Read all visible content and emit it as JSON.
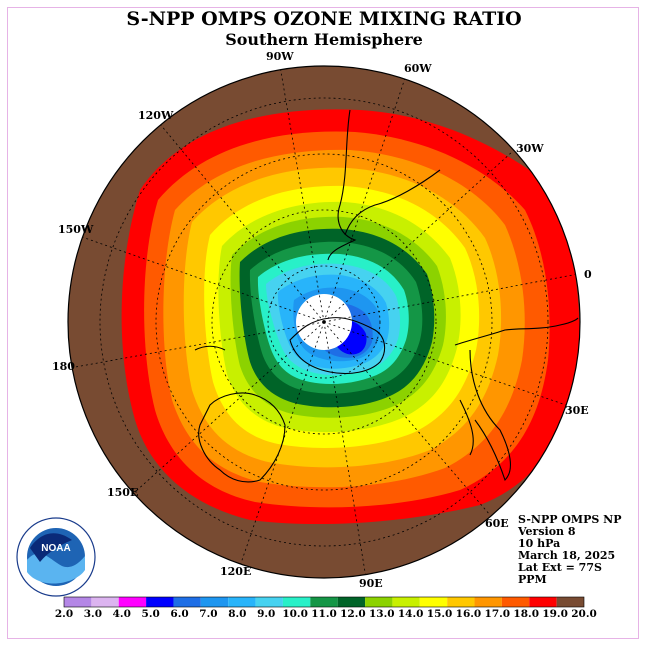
{
  "title": "S-NPP OMPS OZONE MIXING RATIO",
  "subtitle": "Southern Hemisphere",
  "longitude_labels": [
    "90W",
    "60W",
    "30W",
    "0",
    "30E",
    "60E",
    "90E",
    "120E",
    "150E",
    "180",
    "150W",
    "120W"
  ],
  "info": {
    "instrument": "S-NPP OMPS NP",
    "version": "Version 8",
    "level": "10 hPa",
    "date": "March 18, 2025",
    "lat_ext": "Lat Ext = 77S",
    "units": "PPM"
  },
  "logo": {
    "text": "NOAA",
    "ring_text": "NATIONAL OCEANIC AND ATMOSPHERIC ADMINISTRATION U.S. DEPARTMENT OF COMMERCE"
  },
  "colorbar": {
    "labels": [
      "2.0",
      "3.0",
      "4.0",
      "5.0",
      "6.0",
      "7.0",
      "8.0",
      "9.0",
      "10.0",
      "11.0",
      "12.0",
      "13.0",
      "14.0",
      "15.0",
      "16.0",
      "17.0",
      "18.0",
      "19.0",
      "20.0"
    ],
    "colors": [
      "#b487e6",
      "#dcb4f0",
      "#ff00ff",
      "#0000ff",
      "#1e6ee6",
      "#1e96f0",
      "#28b4fa",
      "#46d2f0",
      "#28f0c8",
      "#149646",
      "#006428",
      "#8cd200",
      "#c8f000",
      "#ffff00",
      "#ffc800",
      "#ff9600",
      "#ff5a00",
      "#ff0000",
      "#784b32"
    ]
  }
}
